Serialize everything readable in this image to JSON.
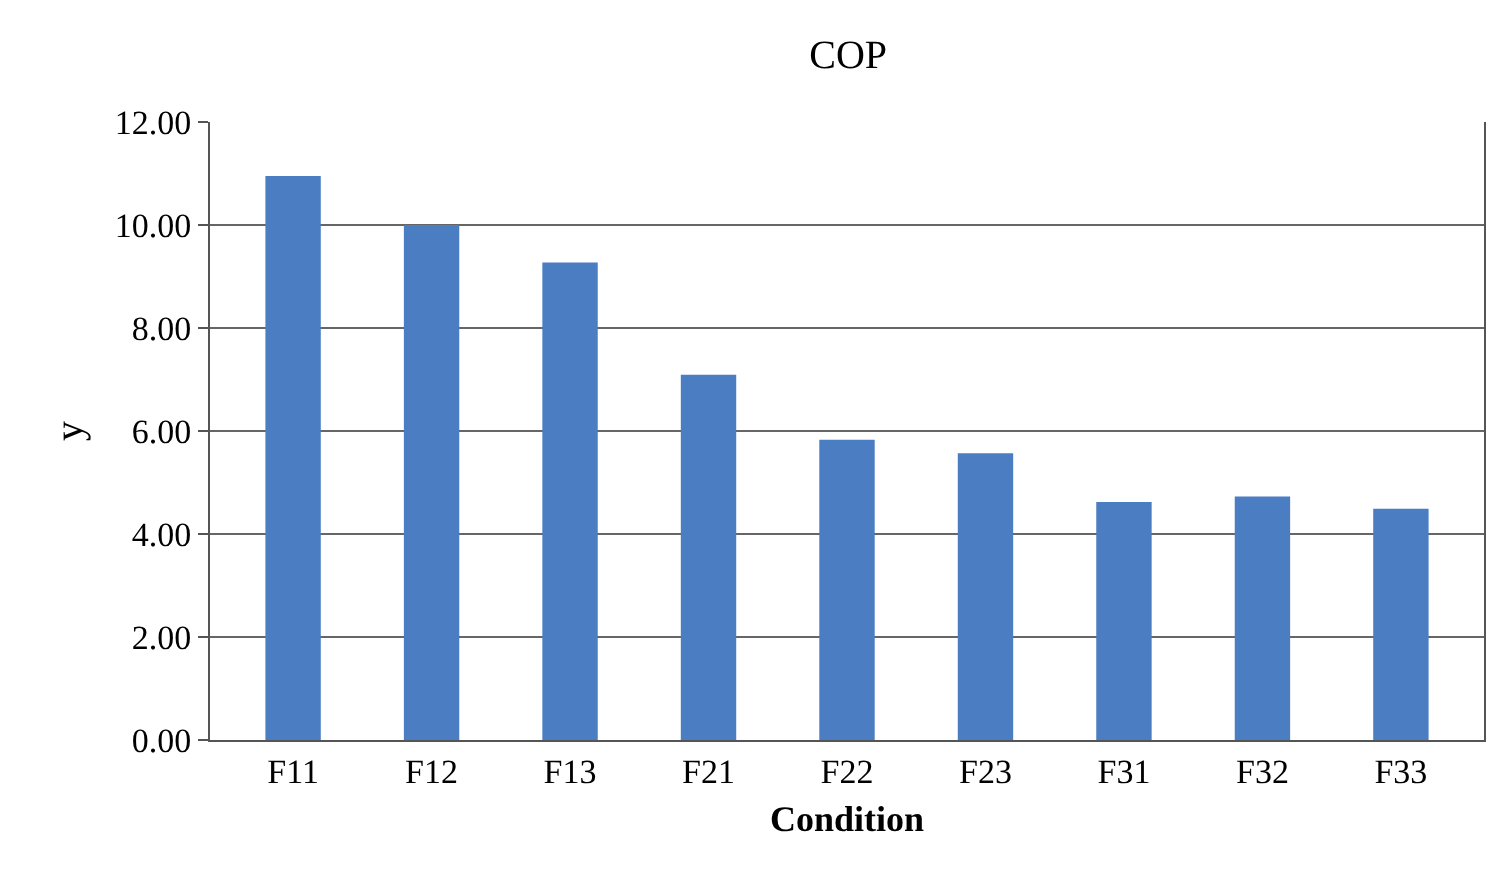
{
  "chart_data": {
    "type": "bar",
    "title": "COP",
    "xlabel": "Condition",
    "ylabel": "y",
    "categories": [
      "F11",
      "F12",
      "F13",
      "F21",
      "F22",
      "F23",
      "F31",
      "F32",
      "F33"
    ],
    "values": [
      10.95,
      10.0,
      9.27,
      7.09,
      5.83,
      5.57,
      4.62,
      4.73,
      4.49
    ],
    "color": "#4a7dc2",
    "ylim": [
      0,
      12
    ],
    "yticks": [
      {
        "value": 0,
        "label": "0.00"
      },
      {
        "value": 2,
        "label": "2.00"
      },
      {
        "value": 4,
        "label": "4.00"
      },
      {
        "value": 6,
        "label": "6.00"
      },
      {
        "value": 8,
        "label": "8.00"
      },
      {
        "value": 10,
        "label": "10.00"
      },
      {
        "value": 12,
        "label": "12.00"
      }
    ],
    "grid": "y"
  }
}
